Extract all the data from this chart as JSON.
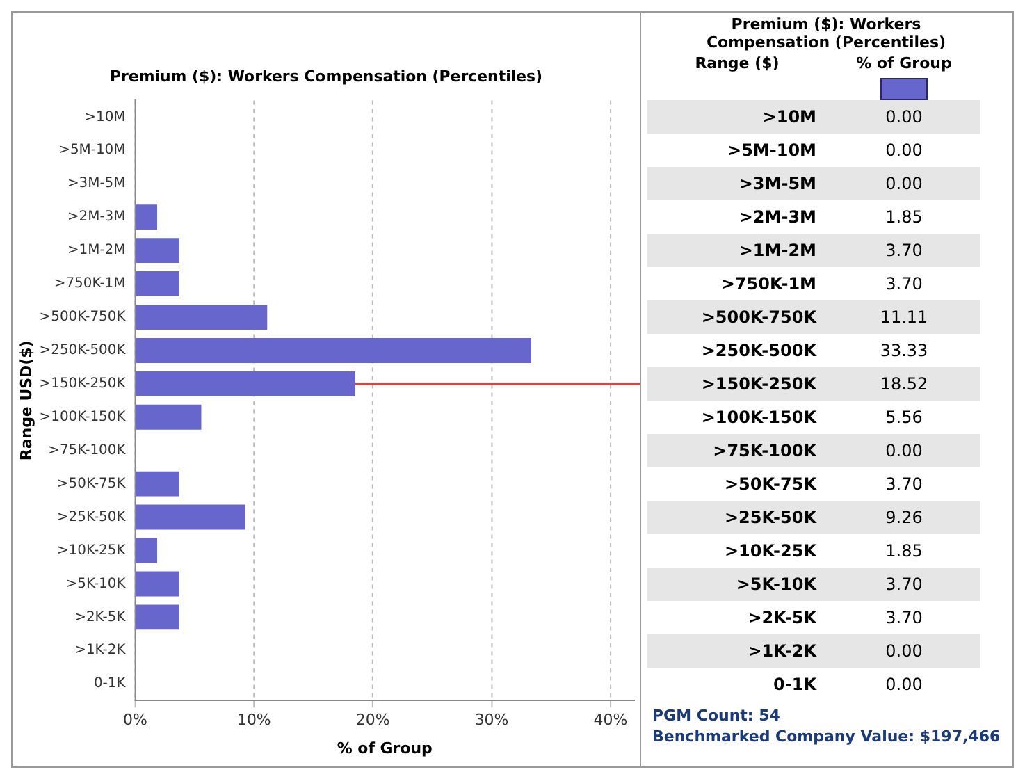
{
  "chart_data": {
    "type": "bar",
    "orientation": "horizontal",
    "title": "Premium ($): Workers Compensation (Percentiles)",
    "xlabel": "% of Group",
    "ylabel": "Range USD($)",
    "categories": [
      ">10M",
      ">5M-10M",
      ">3M-5M",
      ">2M-3M",
      ">1M-2M",
      ">750K-1M",
      ">500K-750K",
      ">250K-500K",
      ">150K-250K",
      ">100K-150K",
      ">75K-100K",
      ">50K-75K",
      ">25K-50K",
      ">10K-25K",
      ">5K-10K",
      ">2K-5K",
      ">1K-2K",
      "0-1K"
    ],
    "values": [
      0,
      0,
      0,
      1.85,
      3.7,
      3.7,
      11.11,
      33.33,
      18.52,
      5.56,
      0,
      3.7,
      9.26,
      1.85,
      3.7,
      3.7,
      0,
      0
    ],
    "value_labels": [
      "0.00",
      "0.00",
      "0.00",
      "1.85",
      "3.70",
      "3.70",
      "11.11",
      "33.33",
      "18.52",
      "5.56",
      "0.00",
      "3.70",
      "9.26",
      "1.85",
      "3.70",
      "3.70",
      "0.00",
      "0.00"
    ],
    "color": "#6666cc",
    "xlim": [
      0,
      42
    ],
    "xticks": [
      {
        "value": 0,
        "label": "0%"
      },
      {
        "value": 10,
        "label": "10%"
      },
      {
        "value": 20,
        "label": "20%"
      },
      {
        "value": 30,
        "label": "30%"
      },
      {
        "value": 40,
        "label": "40%"
      }
    ],
    "grid": "x",
    "legend": false,
    "ref_lines": [
      {
        "axis": "y",
        "value": ">150K-250K",
        "color": "#ff3333"
      }
    ],
    "annotations": [
      "Range ($)",
      "PGM Count: 54",
      "Benchmarked Company Value: $197,466"
    ]
  }
}
